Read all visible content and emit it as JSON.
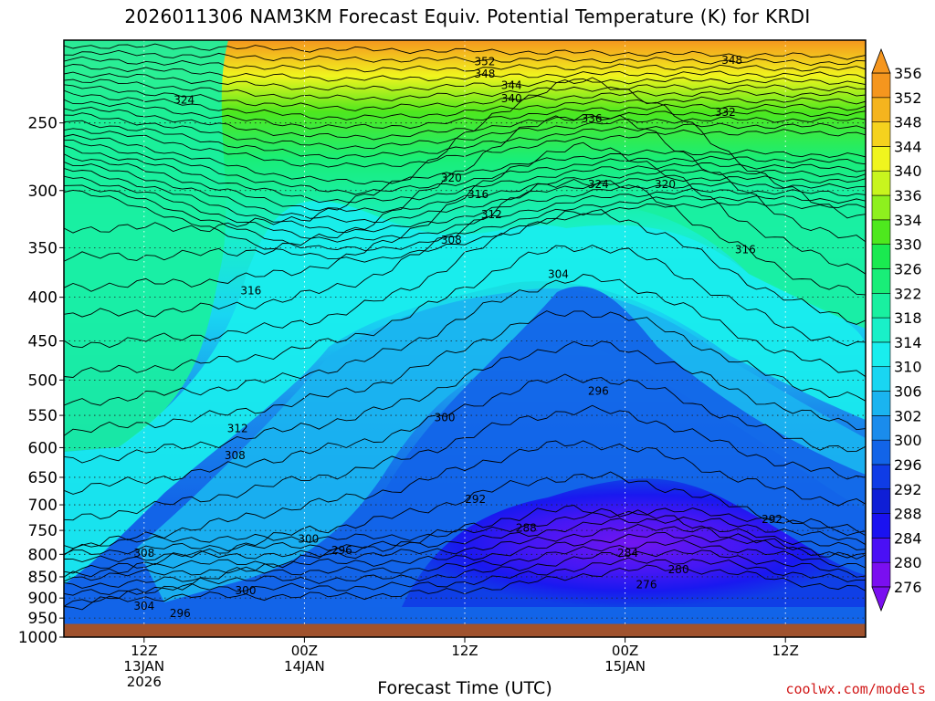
{
  "title": "2026011306 NAM3KM Forecast Equiv. Potential Temperature (K) for KRDI",
  "credit": "coolwx.com/models",
  "chart_data": {
    "type": "heatmap",
    "title": "2026011306 NAM3KM Forecast Equiv. Potential Temperature (K) for KRDI",
    "xlabel": "Forecast Time (UTC)",
    "ylabel": "",
    "ylim": [
      1000,
      200
    ],
    "y_scale": "log",
    "y_ticks": [
      250,
      300,
      350,
      400,
      450,
      500,
      550,
      600,
      650,
      700,
      750,
      800,
      850,
      900,
      950,
      1000
    ],
    "x_ticks": [
      {
        "hour": 6,
        "line1": "12Z",
        "line2": "13JAN",
        "line3": "2026"
      },
      {
        "hour": 18,
        "line1": "00Z",
        "line2": "14JAN",
        "line3": ""
      },
      {
        "hour": 30,
        "line1": "12Z",
        "line2": "",
        "line3": ""
      },
      {
        "hour": 42,
        "line1": "00Z",
        "line2": "15JAN",
        "line3": ""
      },
      {
        "hour": 54,
        "line1": "12Z",
        "line2": "",
        "line3": ""
      }
    ],
    "xlim": [
      0,
      60
    ],
    "grid": true,
    "ground_pressure": 965,
    "colorbar": {
      "levels": [
        276,
        280,
        284,
        288,
        292,
        296,
        300,
        302,
        306,
        310,
        314,
        318,
        322,
        326,
        330,
        334,
        336,
        340,
        344,
        348,
        352,
        356
      ],
      "colors": [
        "#7a0ff0",
        "#4a10f5",
        "#1a12f0",
        "#0f1fd6",
        "#0f3ce6",
        "#1264e8",
        "#1a8cec",
        "#1ab4f0",
        "#19d6f2",
        "#19eeee",
        "#19f0c8",
        "#19f0a0",
        "#19ee78",
        "#1aea50",
        "#4ee81e",
        "#8ef01e",
        "#c8f51e",
        "#f0f51e",
        "#f5d21e",
        "#f5b41e",
        "#f5961e"
      ],
      "extend": "both"
    },
    "contour_labels": [
      {
        "hour": 31.5,
        "p": 212,
        "v": "352"
      },
      {
        "hour": 31.5,
        "p": 219,
        "v": "348"
      },
      {
        "hour": 50,
        "p": 211,
        "v": "348"
      },
      {
        "hour": 33.5,
        "p": 226,
        "v": "344"
      },
      {
        "hour": 33.5,
        "p": 234,
        "v": "340"
      },
      {
        "hour": 39.5,
        "p": 247,
        "v": "336"
      },
      {
        "hour": 49.5,
        "p": 243,
        "v": "332"
      },
      {
        "hour": 9,
        "p": 235,
        "v": "324"
      },
      {
        "hour": 29,
        "p": 290,
        "v": "320"
      },
      {
        "hour": 40,
        "p": 295,
        "v": "324"
      },
      {
        "hour": 45,
        "p": 295,
        "v": "320"
      },
      {
        "hour": 31,
        "p": 303,
        "v": "316"
      },
      {
        "hour": 32,
        "p": 320,
        "v": "312"
      },
      {
        "hour": 29,
        "p": 343,
        "v": "308"
      },
      {
        "hour": 37,
        "p": 376,
        "v": "304"
      },
      {
        "hour": 51,
        "p": 352,
        "v": "316"
      },
      {
        "hour": 14,
        "p": 393,
        "v": "316"
      },
      {
        "hour": 28.5,
        "p": 553,
        "v": "300"
      },
      {
        "hour": 40,
        "p": 515,
        "v": "296"
      },
      {
        "hour": 13,
        "p": 570,
        "v": "312"
      },
      {
        "hour": 12.8,
        "p": 613,
        "v": "308"
      },
      {
        "hour": 30.8,
        "p": 690,
        "v": "292"
      },
      {
        "hour": 34.6,
        "p": 745,
        "v": "288"
      },
      {
        "hour": 53,
        "p": 728,
        "v": "292"
      },
      {
        "hour": 18.3,
        "p": 768,
        "v": "300"
      },
      {
        "hour": 20.8,
        "p": 792,
        "v": "296"
      },
      {
        "hour": 6,
        "p": 797,
        "v": "308"
      },
      {
        "hour": 42.2,
        "p": 797,
        "v": "284"
      },
      {
        "hour": 46,
        "p": 833,
        "v": "280"
      },
      {
        "hour": 43.6,
        "p": 868,
        "v": "276"
      },
      {
        "hour": 13.6,
        "p": 882,
        "v": "300"
      },
      {
        "hour": 6,
        "p": 920,
        "v": "304"
      },
      {
        "hour": 8.7,
        "p": 938,
        "v": "296"
      }
    ]
  }
}
